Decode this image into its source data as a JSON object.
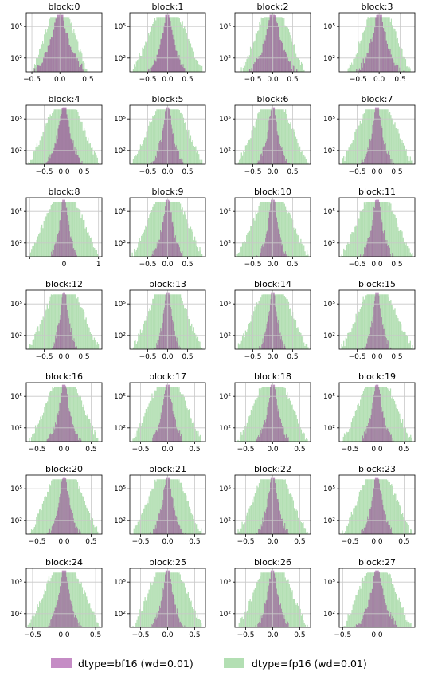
{
  "chart_data": {
    "type": "histogram-grid",
    "y_scale": "log",
    "grid": true,
    "legend_placement": "bottom-center",
    "legend": [
      {
        "name": "dtype=bf16 (wd=0.01)",
        "color": "#bf7fbf"
      },
      {
        "name": "dtype=fp16 (wd=0.01)",
        "color": "#b3dfb3"
      }
    ],
    "y_ticks": [
      {
        "value": 100,
        "label": "10²"
      },
      {
        "value": 100000,
        "label": "10⁵"
      }
    ],
    "panels": [
      {
        "title": "block:0",
        "xlim": [
          -0.6,
          0.75
        ],
        "xticks": [
          -0.5,
          0.0,
          0.5
        ],
        "bf16_half_width": 0.7,
        "fp16_half_width": 0.5
      },
      {
        "title": "block:1",
        "xlim": [
          -0.95,
          0.95
        ],
        "xticks": [
          -0.5,
          0.0,
          0.5
        ],
        "bf16_half_width": 0.7,
        "fp16_half_width": 0.9
      },
      {
        "title": "block:2",
        "xlim": [
          -0.95,
          0.95
        ],
        "xticks": [
          -0.5,
          0.0,
          0.5
        ],
        "bf16_half_width": 0.9,
        "fp16_half_width": 0.8
      },
      {
        "title": "block:3",
        "xlim": [
          -0.95,
          0.85
        ],
        "xticks": [
          -0.5,
          0.0,
          0.5
        ],
        "bf16_half_width": 0.8,
        "fp16_half_width": 0.75
      },
      {
        "title": "block:4",
        "xlim": [
          -0.95,
          0.95
        ],
        "xticks": [
          -0.5,
          0.0,
          0.5
        ],
        "bf16_half_width": 0.7,
        "fp16_half_width": 0.9
      },
      {
        "title": "block:5",
        "xlim": [
          -0.95,
          0.95
        ],
        "xticks": [
          -0.5,
          0.0,
          0.5
        ],
        "bf16_half_width": 0.6,
        "fp16_half_width": 0.9
      },
      {
        "title": "block:6",
        "xlim": [
          -0.95,
          0.95
        ],
        "xticks": [
          -0.5,
          0.0,
          0.5
        ],
        "bf16_half_width": 0.6,
        "fp16_half_width": 0.9
      },
      {
        "title": "block:7",
        "xlim": [
          -0.95,
          0.95
        ],
        "xticks": [
          -0.5,
          0.0,
          0.5
        ],
        "bf16_half_width": 0.6,
        "fp16_half_width": 0.9
      },
      {
        "title": "block:8",
        "xlim": [
          -1.1,
          1.1
        ],
        "xticks": [
          -1,
          0,
          1
        ],
        "xtick_labels": [
          "",
          "0",
          "1"
        ],
        "bf16_half_width": 0.6,
        "fp16_half_width": 1.05
      },
      {
        "title": "block:9",
        "xlim": [
          -0.95,
          0.95
        ],
        "xticks": [
          -0.5,
          0.0,
          0.5
        ],
        "bf16_half_width": 0.6,
        "fp16_half_width": 0.9
      },
      {
        "title": "block:10",
        "xlim": [
          -0.95,
          0.95
        ],
        "xticks": [
          -0.5,
          0.0,
          0.5
        ],
        "bf16_half_width": 0.55,
        "fp16_half_width": 0.9
      },
      {
        "title": "block:11",
        "xlim": [
          -0.95,
          0.95
        ],
        "xticks": [
          -0.5,
          0.0,
          0.5
        ],
        "bf16_half_width": 0.6,
        "fp16_half_width": 0.9
      },
      {
        "title": "block:12",
        "xlim": [
          -0.95,
          0.95
        ],
        "xticks": [
          -0.5,
          0.0,
          0.5
        ],
        "bf16_half_width": 0.5,
        "fp16_half_width": 0.9
      },
      {
        "title": "block:13",
        "xlim": [
          -0.95,
          0.95
        ],
        "xticks": [
          -0.5,
          0.0,
          0.5
        ],
        "bf16_half_width": 0.5,
        "fp16_half_width": 0.9
      },
      {
        "title": "block:14",
        "xlim": [
          -0.95,
          0.95
        ],
        "xticks": [
          -0.5,
          0.0,
          0.5
        ],
        "bf16_half_width": 0.5,
        "fp16_half_width": 0.9
      },
      {
        "title": "block:15",
        "xlim": [
          -0.95,
          0.95
        ],
        "xticks": [
          -0.5,
          0.0,
          0.5
        ],
        "bf16_half_width": 0.5,
        "fp16_half_width": 0.9
      },
      {
        "title": "block:16",
        "xlim": [
          -0.7,
          0.7
        ],
        "xticks": [
          -0.5,
          0.0,
          0.5
        ],
        "bf16_half_width": 0.45,
        "fp16_half_width": 0.65
      },
      {
        "title": "block:17",
        "xlim": [
          -0.7,
          0.7
        ],
        "xticks": [
          -0.5,
          0.0,
          0.5
        ],
        "bf16_half_width": 0.45,
        "fp16_half_width": 0.65
      },
      {
        "title": "block:18",
        "xlim": [
          -0.7,
          0.7
        ],
        "xticks": [
          -0.5,
          0.0,
          0.5
        ],
        "bf16_half_width": 0.45,
        "fp16_half_width": 0.65
      },
      {
        "title": "block:19",
        "xlim": [
          -0.7,
          0.7
        ],
        "xticks": [
          -0.5,
          0.0,
          0.5
        ],
        "bf16_half_width": 0.45,
        "fp16_half_width": 0.65
      },
      {
        "title": "block:20",
        "xlim": [
          -0.7,
          0.7
        ],
        "xticks": [
          -0.5,
          0.0,
          0.5
        ],
        "bf16_half_width": 0.45,
        "fp16_half_width": 0.65
      },
      {
        "title": "block:21",
        "xlim": [
          -0.7,
          0.7
        ],
        "xticks": [
          -0.5,
          0.0,
          0.5
        ],
        "bf16_half_width": 0.45,
        "fp16_half_width": 0.65
      },
      {
        "title": "block:22",
        "xlim": [
          -0.7,
          0.7
        ],
        "xticks": [
          -0.5,
          0.0,
          0.5
        ],
        "bf16_half_width": 0.45,
        "fp16_half_width": 0.65
      },
      {
        "title": "block:23",
        "xlim": [
          -0.7,
          0.7
        ],
        "xticks": [
          -0.5,
          0.0,
          0.5
        ],
        "bf16_half_width": 0.45,
        "fp16_half_width": 0.65
      },
      {
        "title": "block:24",
        "xlim": [
          -0.6,
          0.6
        ],
        "xticks": [
          -0.5,
          0.0,
          0.5
        ],
        "bf16_half_width": 0.4,
        "fp16_half_width": 0.58
      },
      {
        "title": "block:25",
        "xlim": [
          -0.7,
          0.7
        ],
        "xticks": [
          -0.5,
          0.0,
          0.5
        ],
        "bf16_half_width": 0.45,
        "fp16_half_width": 0.65
      },
      {
        "title": "block:26",
        "xlim": [
          -0.7,
          0.7
        ],
        "xticks": [
          -0.5,
          0.0,
          0.5
        ],
        "bf16_half_width": 0.45,
        "fp16_half_width": 0.65
      },
      {
        "title": "block:27",
        "xlim": [
          -0.55,
          0.55
        ],
        "xticks": [
          -0.5,
          0.0
        ],
        "bf16_half_width": 0.45,
        "fp16_half_width": 0.5
      }
    ]
  }
}
